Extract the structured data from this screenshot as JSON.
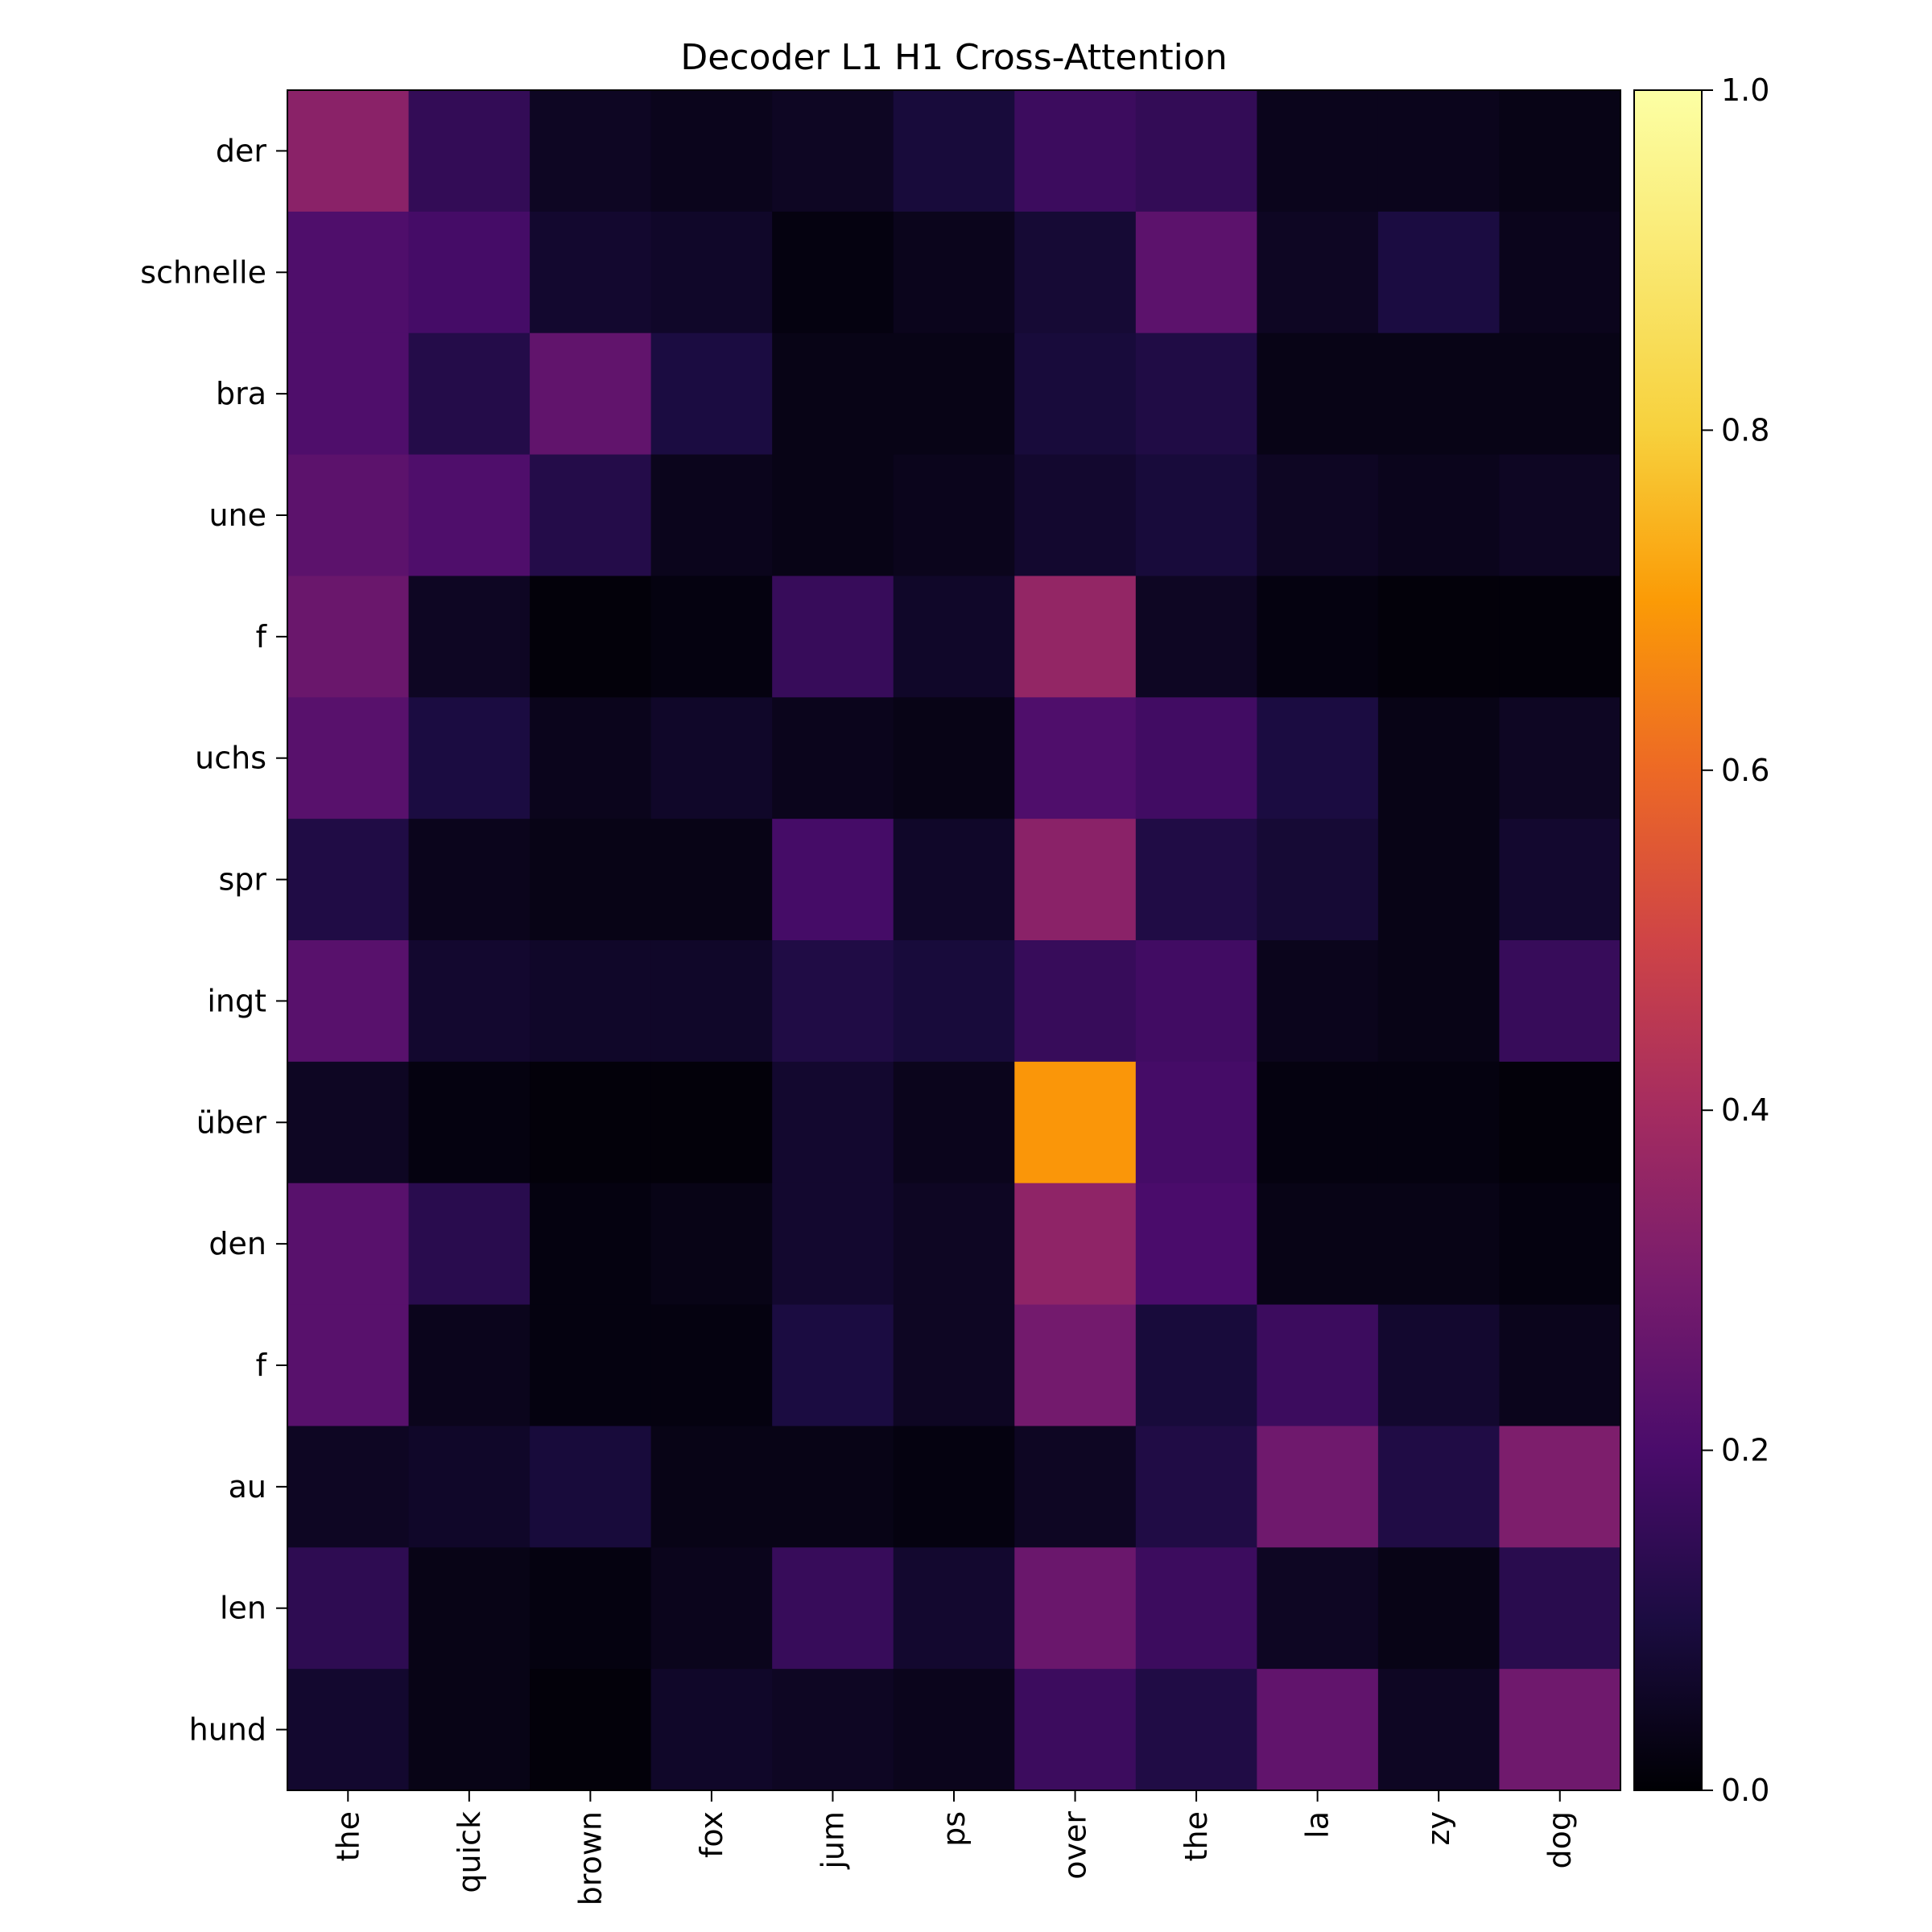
{
  "chart_data": {
    "type": "heatmap",
    "title": "Decoder L1 H1 Cross-Attention",
    "colormap": "inferno",
    "x_labels": [
      "the",
      "quick",
      "brown",
      "fox",
      "jum",
      "ps",
      "over",
      "the",
      "la",
      "zy",
      "dog"
    ],
    "y_labels": [
      "der",
      "schnelle",
      "bra",
      "une",
      "f",
      "uchs",
      "spr",
      "ingt",
      "über",
      "den",
      "f",
      "au",
      "len",
      "hund"
    ],
    "values": [
      [
        0.34,
        0.15,
        0.05,
        0.04,
        0.05,
        0.09,
        0.17,
        0.15,
        0.04,
        0.04,
        0.03
      ],
      [
        0.21,
        0.19,
        0.07,
        0.06,
        0.02,
        0.04,
        0.08,
        0.24,
        0.05,
        0.1,
        0.04
      ],
      [
        0.21,
        0.12,
        0.25,
        0.1,
        0.03,
        0.03,
        0.09,
        0.11,
        0.03,
        0.03,
        0.03
      ],
      [
        0.24,
        0.21,
        0.12,
        0.04,
        0.03,
        0.04,
        0.07,
        0.09,
        0.05,
        0.04,
        0.05
      ],
      [
        0.27,
        0.05,
        0.01,
        0.02,
        0.16,
        0.06,
        0.36,
        0.05,
        0.02,
        0.01,
        0.01
      ],
      [
        0.23,
        0.1,
        0.04,
        0.06,
        0.04,
        0.03,
        0.21,
        0.18,
        0.1,
        0.03,
        0.05
      ],
      [
        0.11,
        0.04,
        0.03,
        0.03,
        0.19,
        0.06,
        0.34,
        0.11,
        0.08,
        0.03,
        0.07
      ],
      [
        0.23,
        0.07,
        0.06,
        0.06,
        0.11,
        0.09,
        0.16,
        0.18,
        0.04,
        0.03,
        0.16
      ],
      [
        0.05,
        0.02,
        0.01,
        0.01,
        0.07,
        0.04,
        0.69,
        0.19,
        0.02,
        0.02,
        0.01
      ],
      [
        0.23,
        0.13,
        0.02,
        0.03,
        0.07,
        0.05,
        0.35,
        0.2,
        0.03,
        0.03,
        0.02
      ],
      [
        0.23,
        0.04,
        0.02,
        0.02,
        0.1,
        0.05,
        0.29,
        0.09,
        0.17,
        0.07,
        0.04
      ],
      [
        0.05,
        0.06,
        0.09,
        0.03,
        0.03,
        0.02,
        0.05,
        0.11,
        0.28,
        0.11,
        0.31
      ],
      [
        0.14,
        0.03,
        0.02,
        0.04,
        0.16,
        0.07,
        0.27,
        0.17,
        0.05,
        0.03,
        0.13
      ],
      [
        0.07,
        0.03,
        0.01,
        0.06,
        0.05,
        0.04,
        0.17,
        0.11,
        0.25,
        0.05,
        0.28
      ]
    ],
    "vmin": 0.0,
    "vmax": 1.0,
    "colorbar_ticks": [
      "0.0",
      "0.2",
      "0.4",
      "0.6",
      "0.8",
      "1.0"
    ]
  }
}
